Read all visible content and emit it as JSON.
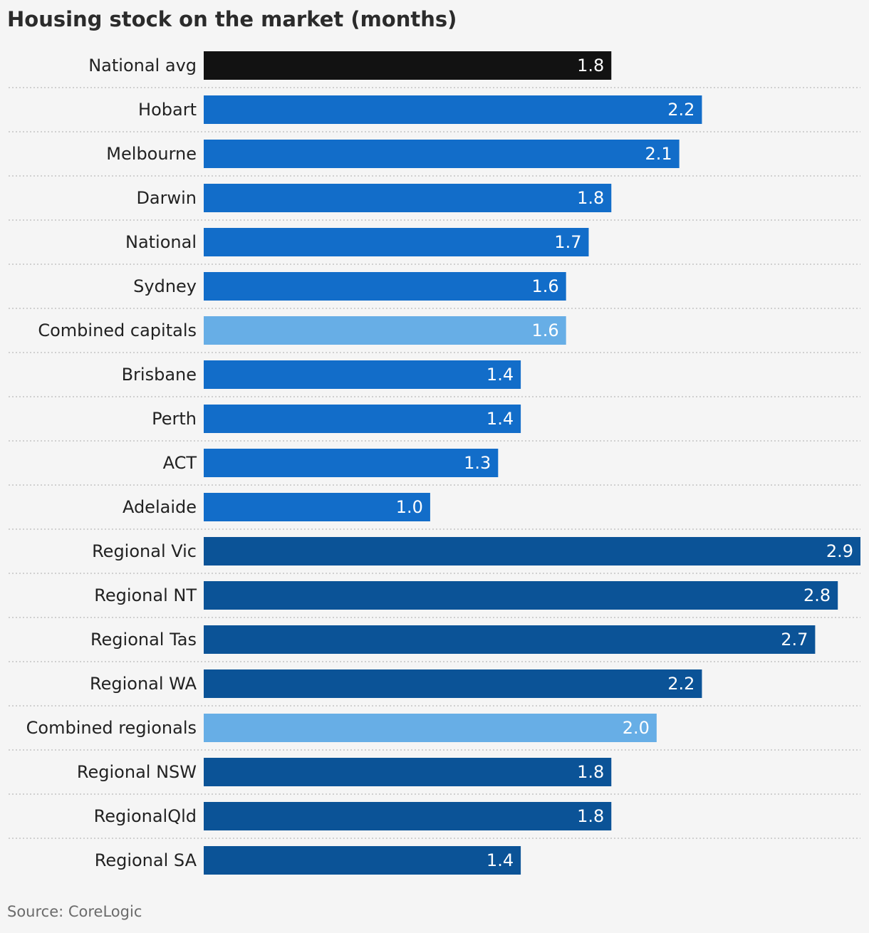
{
  "chart_data": {
    "type": "bar",
    "orientation": "horizontal",
    "title": "Housing stock on the market (months)",
    "source": "Source: CoreLogic",
    "categories": [
      "National avg",
      "Hobart",
      "Melbourne",
      "Darwin",
      "National",
      "Sydney",
      "Combined capitals",
      "Brisbane",
      "Perth",
      "ACT",
      "Adelaide",
      "Regional Vic",
      "Regional NT",
      "Regional Tas",
      "Regional WA",
      "Combined regionals",
      "Regional NSW",
      "RegionalQld",
      "Regional SA"
    ],
    "values": [
      1.8,
      2.2,
      2.1,
      1.8,
      1.7,
      1.6,
      1.6,
      1.4,
      1.4,
      1.3,
      1.0,
      2.9,
      2.8,
      2.7,
      2.2,
      2.0,
      1.8,
      1.8,
      1.4
    ],
    "value_labels": [
      "1.8",
      "2.2",
      "2.1",
      "1.8",
      "1.7",
      "1.6",
      "1.6",
      "1.4",
      "1.4",
      "1.3",
      "1.0",
      "2.9",
      "2.8",
      "2.7",
      "2.2",
      "2.0",
      "1.8",
      "1.8",
      "1.4"
    ],
    "groups": [
      "average",
      "capital",
      "capital",
      "capital",
      "capital",
      "capital",
      "combined",
      "capital",
      "capital",
      "capital",
      "capital",
      "regional",
      "regional",
      "regional",
      "regional",
      "combined",
      "regional",
      "regional",
      "regional"
    ],
    "xlim": [
      0,
      2.9
    ],
    "grid": false,
    "colors": {
      "average": "#121212",
      "capital": "#126dc9",
      "combined": "#67aee6",
      "regional": "#0b5397",
      "divider": "#c4c4c4",
      "label": "#222222",
      "value_text": "#ffffff"
    }
  }
}
